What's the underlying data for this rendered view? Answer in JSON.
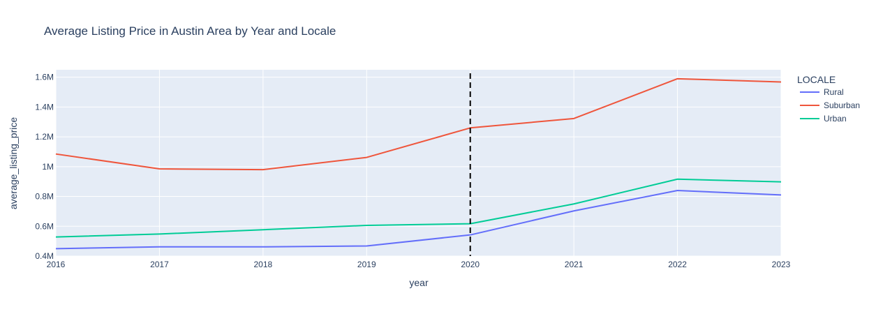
{
  "chart_data": {
    "type": "line",
    "title": "Average Listing Price in Austin Area by Year and Locale",
    "xlabel": "year",
    "ylabel": "average_listing_price",
    "x": [
      2016,
      2017,
      2018,
      2019,
      2020,
      2021,
      2022,
      2023
    ],
    "xlim": [
      2016,
      2023
    ],
    "ylim": [
      400000,
      1650000
    ],
    "yticks": [
      400000,
      600000,
      800000,
      1000000,
      1200000,
      1400000,
      1600000
    ],
    "ytick_labels": [
      "0.4M",
      "0.6M",
      "0.8M",
      "1M",
      "1.2M",
      "1.4M",
      "1.6M"
    ],
    "xtick_labels": [
      "2016",
      "2017",
      "2018",
      "2019",
      "2020",
      "2021",
      "2022",
      "2023"
    ],
    "grid": true,
    "legend_title": "LOCALE",
    "legend_position": "right",
    "series": [
      {
        "name": "Rural",
        "color": "#636efa",
        "values": [
          450000,
          462000,
          462000,
          468000,
          542000,
          703000,
          840000,
          810000
        ]
      },
      {
        "name": "Suburban",
        "color": "#ef553b",
        "values": [
          1085000,
          985000,
          980000,
          1062000,
          1260000,
          1323000,
          1590000,
          1568000
        ]
      },
      {
        "name": "Urban",
        "color": "#00cc96",
        "values": [
          528000,
          548000,
          577000,
          606000,
          617000,
          750000,
          916000,
          898000
        ]
      }
    ],
    "annotations": [
      {
        "type": "vertical-dashed-line",
        "x": 2020,
        "color": "#000000"
      }
    ]
  }
}
